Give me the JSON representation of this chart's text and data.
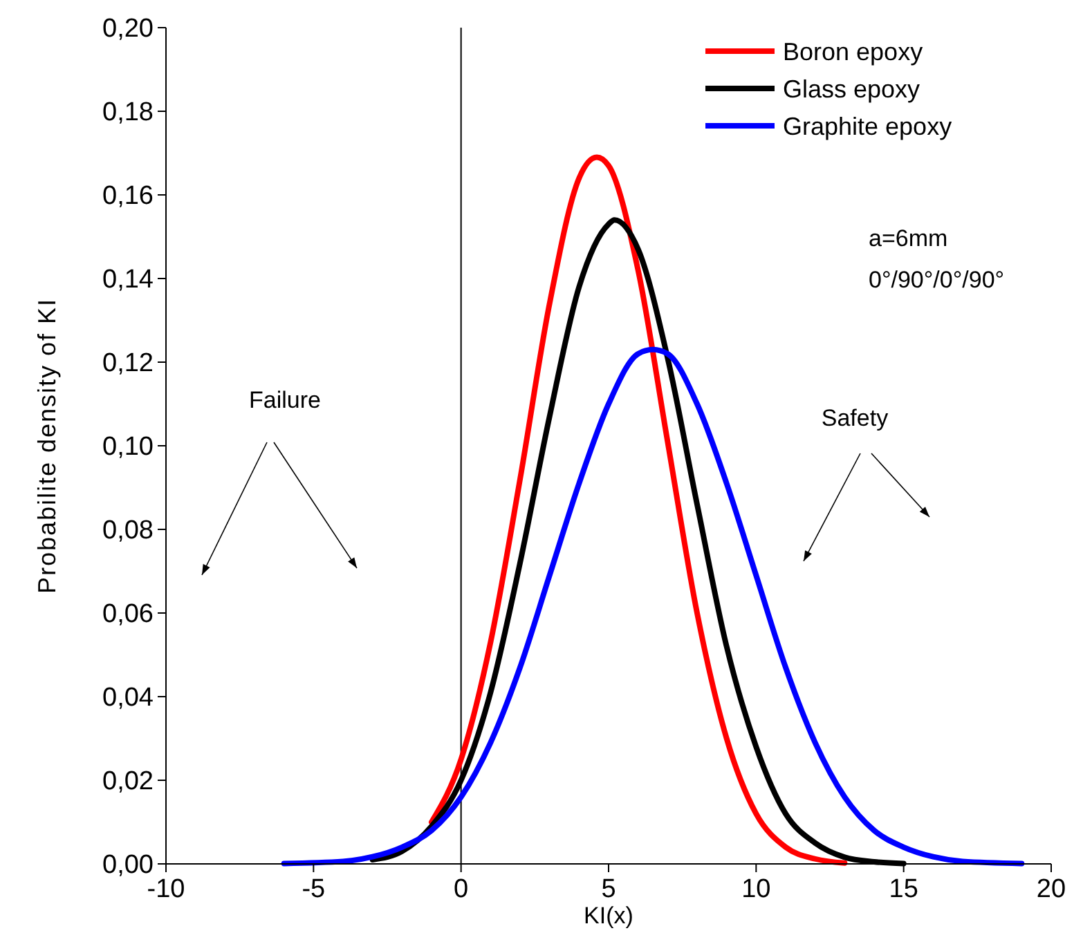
{
  "chart_data": {
    "type": "line",
    "xlabel": "KI(x)",
    "ylabel": "Probabilite density of KI",
    "xlim": [
      -10,
      20
    ],
    "xticks": [
      -10,
      -5,
      0,
      5,
      10,
      15,
      20
    ],
    "ylim": [
      0,
      0.2
    ],
    "yticks": [
      {
        "value": 0,
        "label": "0,00"
      },
      {
        "value": 0.02,
        "label": "0,02"
      },
      {
        "value": 0.04,
        "label": "0,04"
      },
      {
        "value": 0.06,
        "label": "0,06"
      },
      {
        "value": 0.08,
        "label": "0,08"
      },
      {
        "value": 0.1,
        "label": "0,10"
      },
      {
        "value": 0.12,
        "label": "0,12"
      },
      {
        "value": 0.14,
        "label": "0,14"
      },
      {
        "value": 0.16,
        "label": "0,16"
      },
      {
        "value": 0.18,
        "label": "0,18"
      },
      {
        "value": 0.2,
        "label": "0,20"
      }
    ],
    "legend": "top right",
    "grid": false,
    "marker": "none",
    "line_style": "solid",
    "series": [
      {
        "name": "Boron epoxy",
        "color": "#ff0000",
        "x": [
          -1,
          0,
          1,
          2,
          3,
          4,
          4.6,
          5,
          6,
          7,
          8,
          9,
          10,
          11,
          12,
          13
        ],
        "values": [
          0.01,
          0.025,
          0.053,
          0.092,
          0.134,
          0.164,
          0.169,
          0.167,
          0.142,
          0.101,
          0.06,
          0.03,
          0.012,
          0.004,
          0.0012,
          0.0002
        ]
      },
      {
        "name": "Glass epoxy",
        "color": "#000000",
        "x": [
          -3,
          -2,
          -1,
          0,
          1,
          2,
          3,
          4,
          5,
          5.2,
          6,
          7,
          8,
          9,
          10,
          11,
          12,
          13,
          14,
          15
        ],
        "values": [
          0.001,
          0.003,
          0.009,
          0.02,
          0.041,
          0.072,
          0.107,
          0.138,
          0.153,
          0.154,
          0.147,
          0.121,
          0.086,
          0.052,
          0.028,
          0.012,
          0.005,
          0.0016,
          0.0005,
          0.0001
        ]
      },
      {
        "name": "Graphite epoxy",
        "color": "#0000ff",
        "x": [
          -6,
          -4,
          -3,
          -2,
          -1,
          0,
          1,
          2,
          3,
          4,
          5,
          6,
          6.5,
          7,
          8,
          9,
          10,
          11,
          12,
          13,
          14,
          15,
          16,
          17,
          19
        ],
        "values": [
          0.0001,
          0.0006,
          0.0017,
          0.004,
          0.008,
          0.016,
          0.029,
          0.047,
          0.069,
          0.091,
          0.11,
          0.122,
          0.123,
          0.122,
          0.11,
          0.091,
          0.069,
          0.047,
          0.029,
          0.016,
          0.008,
          0.004,
          0.0017,
          0.0006,
          0.0001
        ]
      }
    ],
    "ref_lines": [
      {
        "axis": "x",
        "value": 0,
        "color": "#000000"
      }
    ],
    "annotations": [
      "Failure",
      "Safety",
      "a=6mm",
      "0°/90°/0°/90°"
    ]
  }
}
